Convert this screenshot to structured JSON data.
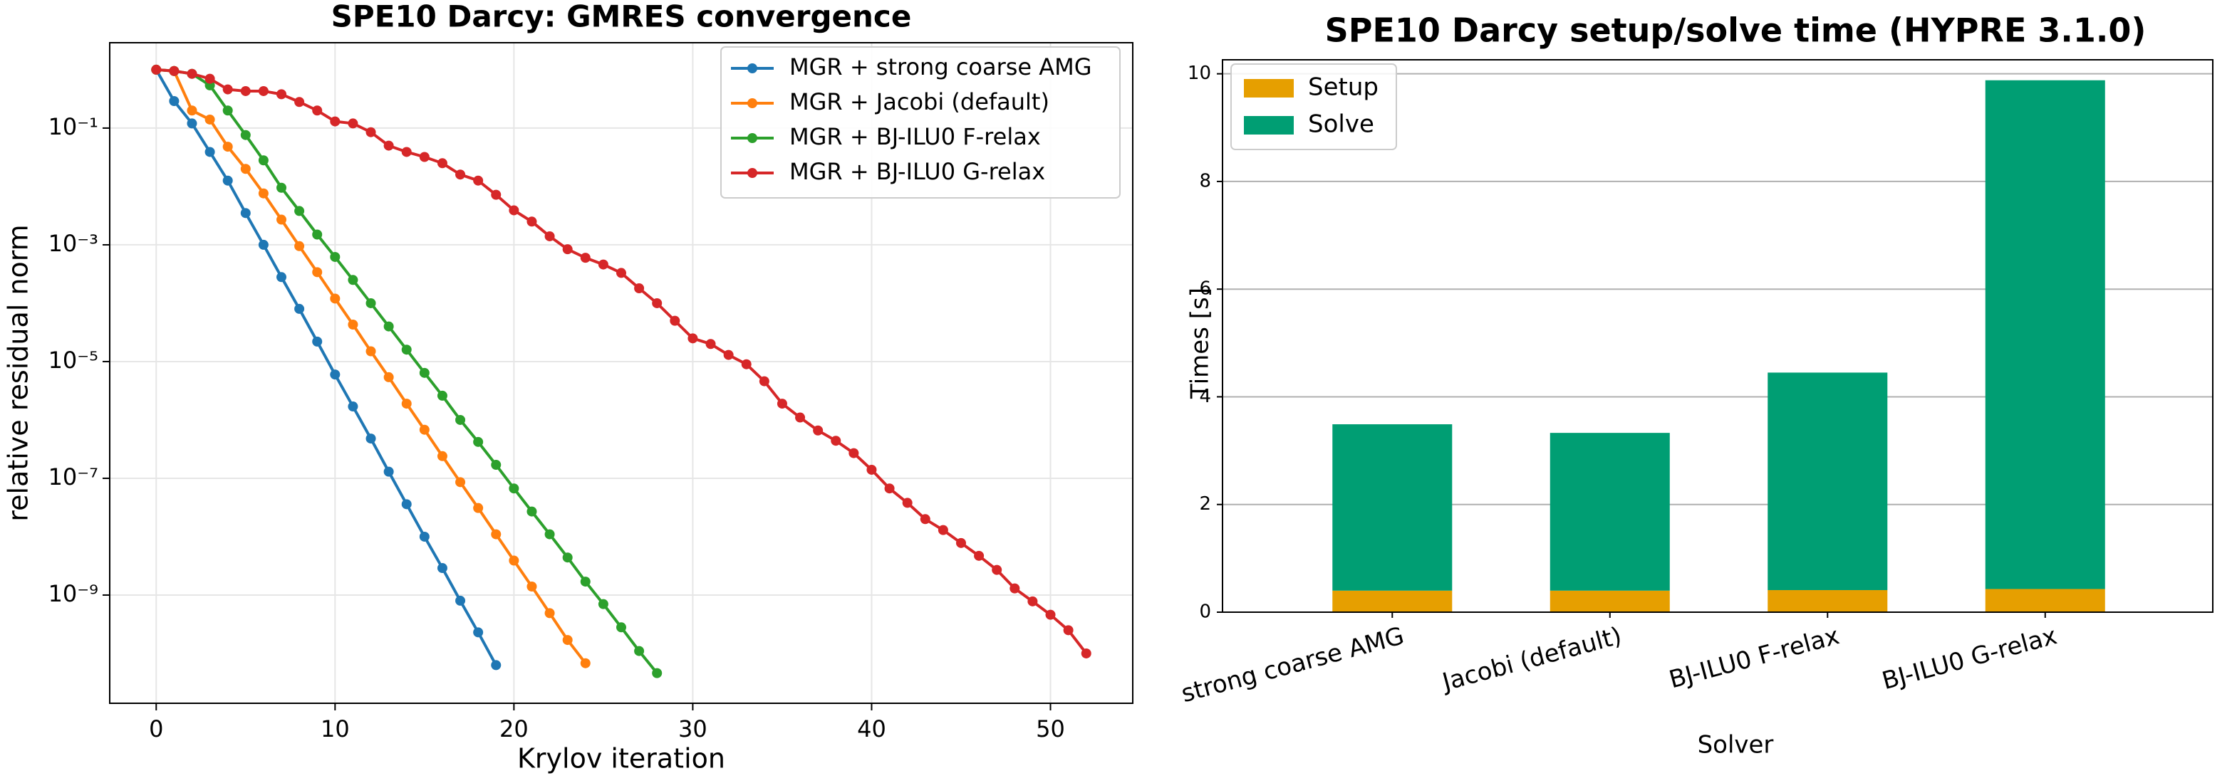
{
  "chart_data": [
    {
      "type": "line",
      "title": "SPE10 Darcy: GMRES convergence",
      "x_label": "Krylov iteration",
      "y_label": "relative residual norm",
      "log_y": true,
      "grid": true,
      "legend": "upper right",
      "xlim": [
        -2.6,
        54.6
      ],
      "xticks": [
        0,
        10,
        20,
        30,
        40,
        50
      ],
      "ylim": [
        1.4e-11,
        2.9
      ],
      "yticks": [
        {
          "value": 0.1,
          "label": "10⁻¹"
        },
        {
          "value": 0.001,
          "label": "10⁻³"
        },
        {
          "value": 1e-05,
          "label": "10⁻⁵"
        },
        {
          "value": 1e-07,
          "label": "10⁻⁷"
        },
        {
          "value": 1e-09,
          "label": "10⁻⁹"
        }
      ],
      "series": [
        {
          "name": "MGR + strong coarse AMG",
          "color": "#1f77b4",
          "x": [
            0,
            1,
            2,
            3,
            4,
            5,
            6,
            7,
            8,
            9,
            10,
            11,
            12,
            13,
            14,
            15,
            16,
            17,
            18,
            19
          ],
          "values": [
            1,
            0.29,
            0.12,
            0.039,
            0.0126,
            0.0035,
            0.001,
            0.00028,
            8e-05,
            2.2e-05,
            6e-06,
            1.7e-06,
            4.8e-07,
            1.3e-07,
            3.6e-08,
            1e-08,
            2.9e-09,
            8e-10,
            2.3e-10,
            6.3e-11
          ]
        },
        {
          "name": "MGR + Jacobi (default)",
          "color": "#ff7f0e",
          "x": [
            0,
            1,
            2,
            3,
            4,
            5,
            6,
            7,
            8,
            9,
            10,
            11,
            12,
            13,
            14,
            15,
            16,
            17,
            18,
            19,
            20,
            21,
            22,
            23,
            24
          ],
          "values": [
            1,
            0.95,
            0.2,
            0.14,
            0.048,
            0.02,
            0.0076,
            0.0027,
            0.00095,
            0.00034,
            0.00012,
            4.3e-05,
            1.5e-05,
            5.4e-06,
            1.9e-06,
            6.8e-07,
            2.4e-07,
            8.6e-08,
            3.1e-08,
            1.1e-08,
            3.9e-09,
            1.4e-09,
            4.9e-10,
            1.7e-10,
            6.8e-11
          ]
        },
        {
          "name": "MGR + BJ-ILU0 F-relax",
          "color": "#2ca02c",
          "x": [
            0,
            1,
            2,
            3,
            4,
            5,
            6,
            7,
            8,
            9,
            10,
            11,
            12,
            13,
            14,
            15,
            16,
            17,
            18,
            19,
            20,
            21,
            22,
            23,
            24,
            25,
            26,
            27,
            28
          ],
          "values": [
            1,
            0.95,
            0.85,
            0.54,
            0.2,
            0.076,
            0.028,
            0.0095,
            0.0038,
            0.0015,
            0.00062,
            0.00025,
            0.0001,
            4e-05,
            1.6e-05,
            6.4e-06,
            2.6e-06,
            1e-06,
            4.2e-07,
            1.7e-07,
            6.7e-08,
            2.7e-08,
            1.1e-08,
            4.4e-09,
            1.7e-09,
            7e-10,
            2.8e-10,
            1.1e-10,
            4.6e-11
          ]
        },
        {
          "name": "MGR + BJ-ILU0 G-relax",
          "color": "#d62728",
          "x": [
            0,
            1,
            2,
            3,
            4,
            5,
            6,
            7,
            8,
            9,
            10,
            11,
            12,
            13,
            14,
            15,
            16,
            17,
            18,
            19,
            20,
            21,
            22,
            23,
            24,
            25,
            26,
            27,
            28,
            29,
            30,
            31,
            32,
            33,
            34,
            35,
            36,
            37,
            38,
            39,
            40,
            41,
            42,
            43,
            44,
            45,
            46,
            47,
            48,
            49,
            50,
            51,
            52
          ],
          "values": [
            1,
            0.95,
            0.85,
            0.7,
            0.46,
            0.43,
            0.43,
            0.38,
            0.28,
            0.2,
            0.13,
            0.12,
            0.085,
            0.05,
            0.039,
            0.032,
            0.025,
            0.016,
            0.0126,
            0.0072,
            0.0039,
            0.0025,
            0.0014,
            0.00084,
            0.0006,
            0.00046,
            0.00033,
            0.00018,
            0.0001,
            5e-05,
            2.5e-05,
            2e-05,
            1.3e-05,
            9e-06,
            4.6e-06,
            1.9e-06,
            1.1e-06,
            6.6e-07,
            4.4e-07,
            2.7e-07,
            1.4e-07,
            6.7e-08,
            3.8e-08,
            2e-08,
            1.3e-08,
            7.8e-09,
            4.7e-09,
            2.7e-09,
            1.3e-09,
            7.8e-10,
            4.6e-10,
            2.5e-10,
            1e-10
          ]
        }
      ]
    },
    {
      "type": "stacked_bar",
      "title": "SPE10 Darcy setup/solve time (HYPRE 3.1.0)",
      "x_label": "Solver",
      "y_label": "Times [s]",
      "grid": true,
      "legend": "upper left",
      "categories": [
        "strong coarse AMG",
        "Jacobi (default)",
        "BJ-ILU0 F-relax",
        "BJ-ILU0 G-relax"
      ],
      "ylim": [
        0,
        10.26
      ],
      "yticks": [
        0,
        2,
        4,
        6,
        8,
        10
      ],
      "series": [
        {
          "name": "Setup",
          "color": "#e69f00",
          "values": [
            0.4,
            0.4,
            0.41,
            0.43
          ]
        },
        {
          "name": "Solve",
          "color": "#009e73",
          "values": [
            3.09,
            2.93,
            4.04,
            9.45
          ]
        }
      ]
    }
  ]
}
